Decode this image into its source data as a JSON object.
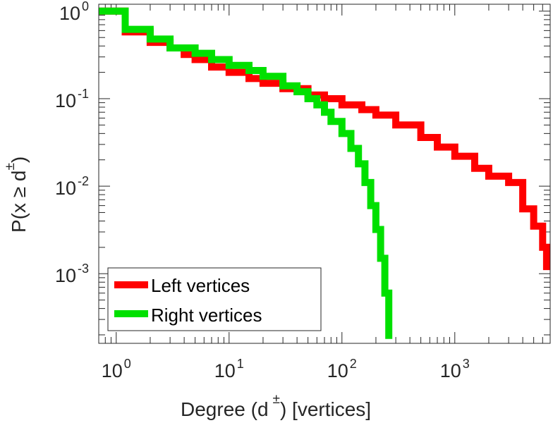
{
  "chart_data": {
    "type": "line",
    "scale": {
      "x": "log",
      "y": "log"
    },
    "xlim": [
      0.7,
      7000
    ],
    "ylim": [
      0.00016,
      1.2
    ],
    "xlabel": {
      "main": "Degree (d",
      "sup": "±",
      "rest": ") [vertices]"
    },
    "ylabel": {
      "main": "P(x ≥ d",
      "sup": "±",
      "rest": ")"
    },
    "x_ticks": [
      {
        "value": 1,
        "base": "10",
        "exp": "0"
      },
      {
        "value": 10,
        "base": "10",
        "exp": "1"
      },
      {
        "value": 100,
        "base": "10",
        "exp": "2"
      },
      {
        "value": 1000,
        "base": "10",
        "exp": "3"
      }
    ],
    "y_ticks": [
      {
        "value": 1,
        "base": "10",
        "exp": "0"
      },
      {
        "value": 0.1,
        "base": "10",
        "exp": "-1"
      },
      {
        "value": 0.01,
        "base": "10",
        "exp": "-2"
      },
      {
        "value": 0.001,
        "base": "10",
        "exp": "-3"
      }
    ],
    "legend_position": "bottom-left",
    "series": [
      {
        "name": "Left vertices",
        "color": "#ff0000",
        "x": [
          0.7,
          1.2,
          2,
          3,
          4,
          5,
          7,
          10,
          15,
          20,
          30,
          50,
          70,
          100,
          150,
          200,
          300,
          500,
          700,
          1000,
          1500,
          2000,
          3000,
          4000,
          5000,
          6000,
          6500
        ],
        "y": [
          1.0,
          0.58,
          0.44,
          0.38,
          0.32,
          0.28,
          0.23,
          0.2,
          0.17,
          0.15,
          0.13,
          0.11,
          0.1,
          0.085,
          0.075,
          0.065,
          0.05,
          0.036,
          0.028,
          0.022,
          0.016,
          0.013,
          0.011,
          0.0055,
          0.0035,
          0.002,
          0.0011
        ]
      },
      {
        "name": "Right vertices",
        "color": "#00e000",
        "x": [
          0.7,
          1.2,
          2,
          3,
          5,
          7,
          10,
          15,
          20,
          30,
          40,
          50,
          60,
          70,
          80,
          100,
          120,
          140,
          160,
          180,
          200,
          220,
          240,
          260
        ],
        "y": [
          1.0,
          0.62,
          0.48,
          0.38,
          0.33,
          0.28,
          0.24,
          0.21,
          0.18,
          0.14,
          0.12,
          0.1,
          0.085,
          0.07,
          0.055,
          0.04,
          0.027,
          0.018,
          0.011,
          0.006,
          0.0032,
          0.0015,
          0.0006,
          0.00018
        ]
      }
    ]
  }
}
